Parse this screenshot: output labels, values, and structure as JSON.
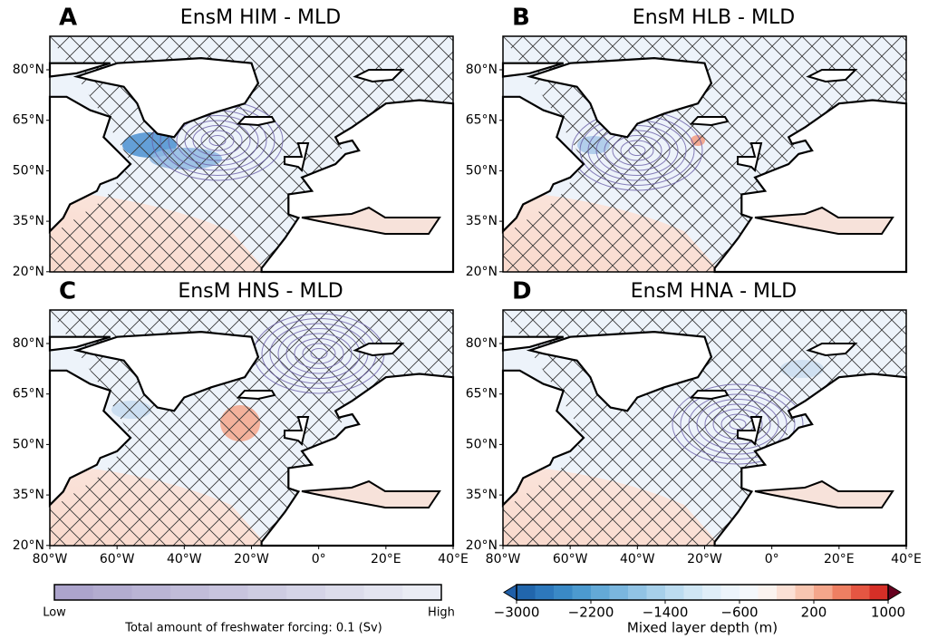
{
  "panels": [
    {
      "letter": "A",
      "title": "EnsM HIM - MLD"
    },
    {
      "letter": "B",
      "title": "EnsM HLB - MLD"
    },
    {
      "letter": "C",
      "title": "EnsM HNS - MLD"
    },
    {
      "letter": "D",
      "title": "EnsM HNA - MLD"
    }
  ],
  "lat_ticks": [
    "80°N",
    "65°N",
    "50°N",
    "35°N",
    "20°N"
  ],
  "lon_ticks": [
    "80°W",
    "60°W",
    "40°W",
    "20°W",
    "0°",
    "20°E",
    "40°E"
  ],
  "forcing_colorbar": {
    "low": "Low",
    "high": "High",
    "label": "Total amount of freshwater forcing: 0.1 (Sv)"
  },
  "mld_colorbar": {
    "ticks": [
      "−3000",
      "−2200",
      "−1400",
      "−600",
      "200",
      "1000"
    ],
    "label": "Mixed layer depth (m)"
  }
}
